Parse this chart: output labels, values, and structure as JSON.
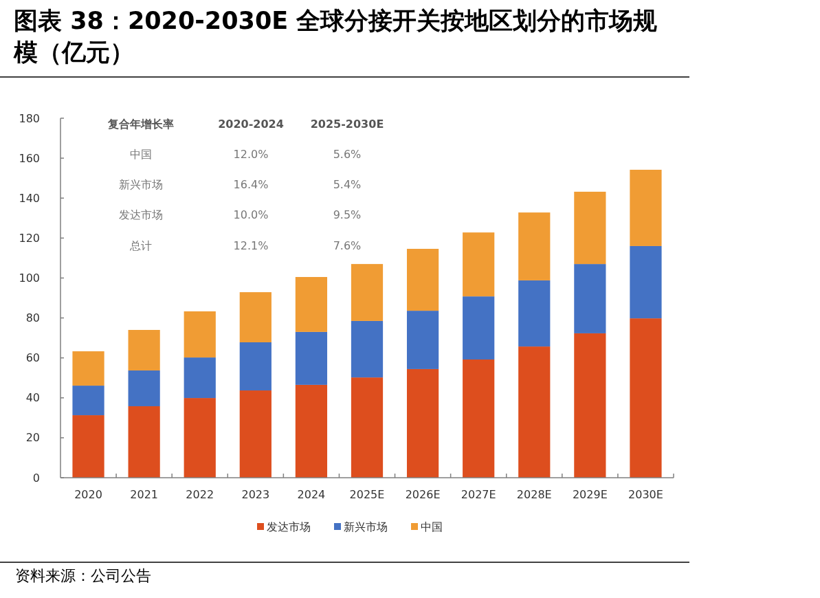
{
  "chart_data": {
    "type": "bar",
    "title": "图表 38：2020-2030E 全球分接开关按地区划分的市场规模（亿元）",
    "stacked": true,
    "legend": "bottom",
    "grid": false,
    "categories": [
      "2020",
      "2021",
      "2022",
      "2023",
      "2024",
      "2025E",
      "2026E",
      "2027E",
      "2028E",
      "2029E",
      "2030E"
    ],
    "series": [
      {
        "name": "发达市场",
        "color": "#dd4e1e",
        "values": [
          31.3,
          35.8,
          39.9,
          43.7,
          46.5,
          50.2,
          54.4,
          59.2,
          65.7,
          72.3,
          79.8
        ]
      },
      {
        "name": "新兴市场",
        "color": "#4472c4",
        "values": [
          14.8,
          17.9,
          20.3,
          24.1,
          26.5,
          28.3,
          29.2,
          31.6,
          33.1,
          34.7,
          36.2
        ]
      },
      {
        "name": "中国",
        "color": "#f09c34",
        "values": [
          17.2,
          20.3,
          23.1,
          25.1,
          27.5,
          28.5,
          31.0,
          32.0,
          34.0,
          36.2,
          38.2
        ]
      }
    ],
    "ylim": [
      0,
      180
    ],
    "yticks": [
      0,
      20,
      40,
      60,
      80,
      100,
      120,
      140,
      160,
      180
    ],
    "annotations": [
      "复合年增长率",
      "2020-2024",
      "2025-2030E",
      "中国",
      "12.0%",
      "5.6%",
      "新兴市场",
      "16.4%",
      "5.4%",
      "发达市场",
      "10.0%",
      "9.5%",
      "总计",
      "12.1%",
      "7.6%",
      "资料来源：公司公告"
    ]
  }
}
